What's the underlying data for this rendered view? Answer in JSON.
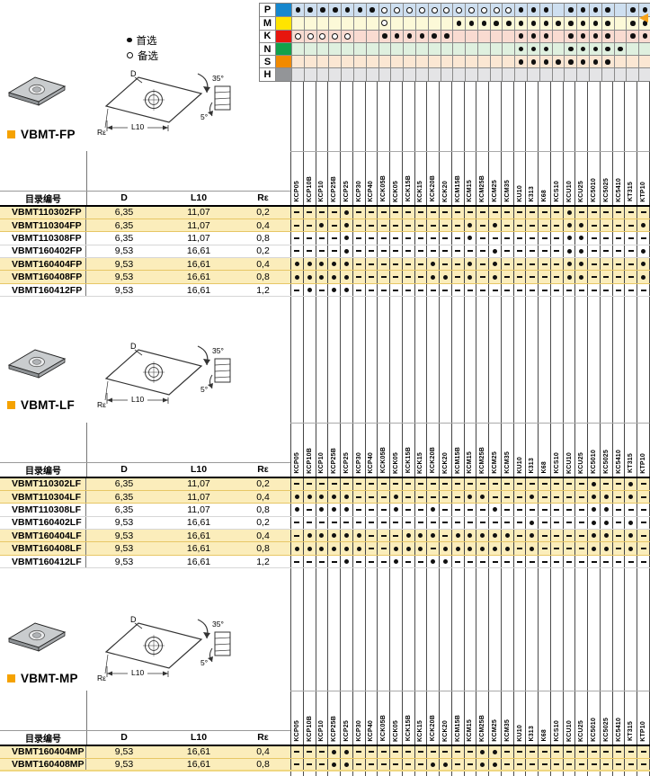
{
  "legend": {
    "preferred_label": "首选",
    "alternate_label": "备选"
  },
  "grade_columns": [
    "KCP05",
    "KCP10B",
    "KCP10",
    "KCP25B",
    "KCP25",
    "KCP30",
    "KCP40",
    "KCK05B",
    "KCK05",
    "KCK15B",
    "KCK15",
    "KCK20B",
    "KCK20",
    "KCM15B",
    "KCM15",
    "KCM25B",
    "KCM25",
    "KCM35",
    "KU10",
    "K313",
    "K68",
    "KCS10",
    "KCU10",
    "KCU25",
    "KC5010",
    "KC5025",
    "KC5410",
    "KT315",
    "KTP10"
  ],
  "application_matrix": {
    "rows": [
      {
        "code": "P",
        "swatch": "#1787cd",
        "row_bg": "#cedff0",
        "cells": "FFFFFFFOOOOOOOOOOOFFF.FFFF.FF"
      },
      {
        "code": "M",
        "swatch": "#ffe400",
        "row_bg": "#fcf9d8",
        "cells": ".......O.....FFFFFFFFFFFFF.FF"
      },
      {
        "code": "K",
        "swatch": "#e7160e",
        "row_bg": "#f9dbd1",
        "cells": "OOOOO..FFFFFF.....FFF.FFFF.FF"
      },
      {
        "code": "N",
        "swatch": "#12a14b",
        "row_bg": "#dff0df",
        "cells": "..................FFF.FFFFF.."
      },
      {
        "code": "S",
        "swatch": "#f18a00",
        "row_bg": "#fbe7d3",
        "cells": "..................FFFFFFFF..."
      },
      {
        "code": "H",
        "swatch": "#939598",
        "row_bg": "#e4e4e6",
        "cells": "............................."
      }
    ]
  },
  "table_headers": {
    "catalog": "目录编号",
    "d": "D",
    "l10": "L10",
    "re": "Rε"
  },
  "diagram": {
    "labels": {
      "d": "D",
      "l10": "L10",
      "re": "Rε",
      "angle": "35°",
      "clearance": "5°"
    }
  },
  "sections": [
    {
      "title": "VBMT-FP",
      "rows": [
        {
          "catalog": "VBMT110302FP",
          "d": "6,35",
          "l10": "11,07",
          "re": "0,2",
          "highlight": true,
          "cells": "----D-----------------D------"
        },
        {
          "catalog": "VBMT110304FP",
          "d": "6,35",
          "l10": "11,07",
          "re": "0,4",
          "highlight": true,
          "cells": "--D-D---------D-D-----DD----D"
        },
        {
          "catalog": "VBMT110308FP",
          "d": "6,35",
          "l10": "11,07",
          "re": "0,8",
          "highlight": false,
          "cells": "----D---------D-------DD-----"
        },
        {
          "catalog": "VBMT160402FP",
          "d": "9,53",
          "l10": "16,61",
          "re": "0,2",
          "highlight": false,
          "cells": "----D-----------D-----DD----D"
        },
        {
          "catalog": "VBMT160404FP",
          "d": "9,53",
          "l10": "16,61",
          "re": "0,4",
          "highlight": true,
          "cells": "DDDDD------D--D-D-----DD----D"
        },
        {
          "catalog": "VBMT160408FP",
          "d": "9,53",
          "l10": "16,61",
          "re": "0,8",
          "highlight": true,
          "cells": "DDDDD------DD-D-D-----DD----D"
        },
        {
          "catalog": "VBMT160412FP",
          "d": "9,53",
          "l10": "16,61",
          "re": "1,2",
          "highlight": false,
          "cells": "-D-DD------------------------"
        }
      ]
    },
    {
      "title": "VBMT-LF",
      "rows": [
        {
          "catalog": "VBMT110302LF",
          "d": "6,35",
          "l10": "11,07",
          "re": "0,2",
          "highlight": true,
          "cells": "------------------------D--D-"
        },
        {
          "catalog": "VBMT110304LF",
          "d": "6,35",
          "l10": "11,07",
          "re": "0,4",
          "highlight": true,
          "cells": "DDDDD---D-----DD---D----DD-D-"
        },
        {
          "catalog": "VBMT110308LF",
          "d": "6,35",
          "l10": "11,07",
          "re": "0,8",
          "highlight": false,
          "cells": "D-DDD---D--D----D-------DD---"
        },
        {
          "catalog": "VBMT160402LF",
          "d": "9,53",
          "l10": "16,61",
          "re": "0,2",
          "highlight": false,
          "cells": "-------------------D----DD-D-"
        },
        {
          "catalog": "VBMT160404LF",
          "d": "9,53",
          "l10": "16,61",
          "re": "0,4",
          "highlight": true,
          "cells": "-DDDDD---DDD-DDDDD-D----DD-D-"
        },
        {
          "catalog": "VBMT160408LF",
          "d": "9,53",
          "l10": "16,61",
          "re": "0,8",
          "highlight": true,
          "cells": "DDDDDD--DDD-DDDDDD-D----DD-D-"
        },
        {
          "catalog": "VBMT160412LF",
          "d": "9,53",
          "l10": "16,61",
          "re": "1,2",
          "highlight": false,
          "cells": "----D---D--DD----------------"
        }
      ]
    },
    {
      "title": "VBMT-MP",
      "rows": [
        {
          "catalog": "VBMT160404MP",
          "d": "9,53",
          "l10": "16,61",
          "re": "0,4",
          "highlight": true,
          "cells": "---DD----------DD------------"
        },
        {
          "catalog": "VBMT160408MP",
          "d": "9,53",
          "l10": "16,61",
          "re": "0,8",
          "highlight": true,
          "cells": "---DD------DD--DD------------"
        }
      ]
    }
  ],
  "colors": {
    "highlight_row": "#fbedbb",
    "title_bullet": "#f5a200",
    "heavy_line": "#000000",
    "matrix_arrow": "#f6a21a"
  }
}
